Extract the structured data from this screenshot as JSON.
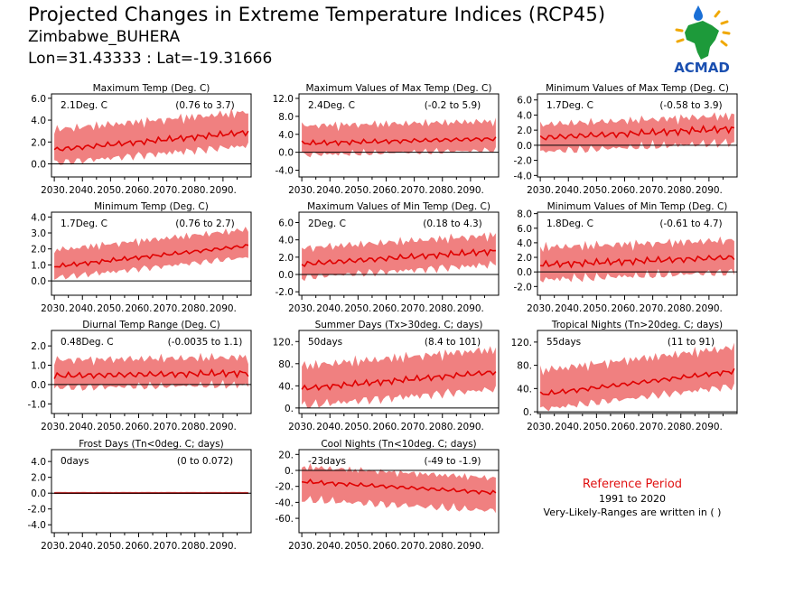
{
  "header": {
    "title": "Projected Changes in Extreme Temperature Indices (RCP45)",
    "region": "Zimbabwe_BUHERA",
    "coords": "Lon=31.43333 : Lat=-19.31666"
  },
  "logo": {
    "text": "ACMAD",
    "icon": "acmad-africa-logo"
  },
  "notes": {
    "title": "Reference Period",
    "period": "1991 to 2020",
    "ranges_note": "Very-Likely-Ranges are written in ( )"
  },
  "colors": {
    "band": "#f08080",
    "line": "#e00000",
    "zero_line": "#000000",
    "note_title": "#e01010"
  },
  "chart_data": [
    {
      "type": "area",
      "title": "Maximum Temp (Deg. C)",
      "value_label": "2.1Deg. C",
      "range_label": "(0.76 to 3.7)",
      "x_ticks": [
        "2030.",
        "2040.",
        "2050.",
        "2060.",
        "2070.",
        "2080.",
        "2090."
      ],
      "xlim": [
        2029,
        2100
      ],
      "ylim": [
        -1.2,
        6.4
      ],
      "y_ticks": [
        0,
        2,
        4,
        6
      ],
      "y_tick_labels": [
        "0.0",
        "2.0",
        "4.0",
        "6.0"
      ],
      "median_start": 1.3,
      "median_end": 2.9,
      "band_lower": 1.2,
      "band_upper": 1.8,
      "amp": 0.3
    },
    {
      "type": "area",
      "title": "Maximum Values of Max Temp (Deg. C)",
      "value_label": "2.4Deg. C",
      "range_label": "(-0.2 to 5.9)",
      "x_ticks": [
        "2030.",
        "2040.",
        "2050.",
        "2060.",
        "2070.",
        "2080.",
        "2090."
      ],
      "xlim": [
        2029,
        2100
      ],
      "ylim": [
        -5.5,
        13
      ],
      "y_ticks": [
        -4,
        0,
        4,
        8,
        12
      ],
      "y_tick_labels": [
        "-4.0",
        "0.0",
        "4.0",
        "8.0",
        "12.0"
      ],
      "median_start": 2.0,
      "median_end": 3.0,
      "band_lower": 2.5,
      "band_upper": 3.8,
      "amp": 0.6
    },
    {
      "type": "area",
      "title": "Minimum Values of Max Temp (Deg. C)",
      "value_label": "1.7Deg. C",
      "range_label": "(-0.58 to 3.9)",
      "x_ticks": [
        "2030.",
        "2040.",
        "2050.",
        "2060.",
        "2070.",
        "2080.",
        "2090."
      ],
      "xlim": [
        2029,
        2100
      ],
      "ylim": [
        -4.2,
        6.8
      ],
      "y_ticks": [
        -4,
        -2,
        0,
        2,
        4,
        6
      ],
      "y_tick_labels": [
        "-4.0",
        "-2.0",
        "0.0",
        "2.0",
        "4.0",
        "6.0"
      ],
      "median_start": 1.0,
      "median_end": 2.2,
      "band_lower": 1.8,
      "band_upper": 1.7,
      "amp": 0.5
    },
    {
      "type": "area",
      "title": "Minimum Temp (Deg. C)",
      "value_label": "1.7Deg. C",
      "range_label": "(0.76 to 2.7)",
      "x_ticks": [
        "2030.",
        "2040.",
        "2050.",
        "2060.",
        "2070.",
        "2080.",
        "2090."
      ],
      "xlim": [
        2029,
        2100
      ],
      "ylim": [
        -0.9,
        4.3
      ],
      "y_ticks": [
        0,
        1,
        2,
        3,
        4
      ],
      "y_tick_labels": [
        "0.0",
        "1.0",
        "2.0",
        "3.0",
        "4.0"
      ],
      "median_start": 0.9,
      "median_end": 2.2,
      "band_lower": 0.7,
      "band_upper": 1.0,
      "amp": 0.15
    },
    {
      "type": "area",
      "title": "Maximum Values of Min Temp (Deg. C)",
      "value_label": "2Deg. C",
      "range_label": "(0.18 to 4.3)",
      "x_ticks": [
        "2030.",
        "2040.",
        "2050.",
        "2060.",
        "2070.",
        "2080.",
        "2090."
      ],
      "xlim": [
        2029,
        2100
      ],
      "ylim": [
        -2.4,
        7.2
      ],
      "y_ticks": [
        -2,
        0,
        2,
        4,
        6
      ],
      "y_tick_labels": [
        "-2.0",
        "0.0",
        "2.0",
        "4.0",
        "6.0"
      ],
      "median_start": 1.2,
      "median_end": 2.7,
      "band_lower": 1.5,
      "band_upper": 1.8,
      "amp": 0.4
    },
    {
      "type": "area",
      "title": "Minimum Values of Min Temp (Deg. C)",
      "value_label": "1.8Deg. C",
      "range_label": "(-0.61 to 4.7)",
      "x_ticks": [
        "2030.",
        "2040.",
        "2050.",
        "2060.",
        "2070.",
        "2080.",
        "2090."
      ],
      "xlim": [
        2029,
        2100
      ],
      "ylim": [
        -3.2,
        8.2
      ],
      "y_ticks": [
        -2,
        0,
        2,
        4,
        6,
        8
      ],
      "y_tick_labels": [
        "-2.0",
        "0.0",
        "2.0",
        "4.0",
        "6.0",
        "8.0"
      ],
      "median_start": 1.0,
      "median_end": 2.0,
      "band_lower": 2.0,
      "band_upper": 2.3,
      "amp": 0.5
    },
    {
      "type": "area",
      "title": "Diurnal Temp Range (Deg. C)",
      "value_label": "0.48Deg. C",
      "range_label": "(-0.0035 to 1.1)",
      "x_ticks": [
        "2030.",
        "2040.",
        "2050.",
        "2060.",
        "2070.",
        "2080.",
        "2090."
      ],
      "xlim": [
        2029,
        2100
      ],
      "ylim": [
        -1.5,
        2.8
      ],
      "y_ticks": [
        -1,
        0,
        1,
        2
      ],
      "y_tick_labels": [
        "-1.0",
        "0.0",
        "1.0",
        "2.0"
      ],
      "median_start": 0.45,
      "median_end": 0.6,
      "band_lower": 0.6,
      "band_upper": 0.8,
      "amp": 0.2
    },
    {
      "type": "area",
      "title": "Summer Days (Tx>30deg. C; days)",
      "value_label": "50days",
      "range_label": "(8.4 to 101)",
      "x_ticks": [
        "2030.",
        "2040.",
        "2050.",
        "2060.",
        "2070.",
        "2080.",
        "2090."
      ],
      "xlim": [
        2029,
        2100
      ],
      "ylim": [
        -10,
        140
      ],
      "y_ticks": [
        0,
        40,
        80,
        120
      ],
      "y_tick_labels": [
        "0.",
        "40.",
        "80.",
        "120."
      ],
      "median_start": 35,
      "median_end": 65,
      "band_lower": 30,
      "band_upper": 40,
      "amp": 6
    },
    {
      "type": "area",
      "title": "Tropical Nights (Tn>20deg. C; days)",
      "value_label": "55days",
      "range_label": "(11 to 91)",
      "x_ticks": [
        "2030.",
        "2040.",
        "2050.",
        "2060.",
        "2070.",
        "2080.",
        "2090."
      ],
      "xlim": [
        2029,
        2100
      ],
      "ylim": [
        -3,
        140
      ],
      "y_ticks": [
        0,
        40,
        80,
        120
      ],
      "y_tick_labels": [
        "0.",
        "40.",
        "80.",
        "120."
      ],
      "median_start": 30,
      "median_end": 70,
      "band_lower": 25,
      "band_upper": 40,
      "amp": 5
    },
    {
      "type": "area",
      "title": "Frost Days (Tn<0deg. C; days)",
      "value_label": "0days",
      "range_label": "(0 to 0.072)",
      "x_ticks": [
        "2030.",
        "2040.",
        "2050.",
        "2060.",
        "2070.",
        "2080.",
        "2090."
      ],
      "xlim": [
        2029,
        2100
      ],
      "ylim": [
        -5,
        5.5
      ],
      "y_ticks": [
        -4,
        -2,
        0,
        2,
        4
      ],
      "y_tick_labels": [
        "-4.0",
        "-2.0",
        "0.0",
        "2.0",
        "4.0"
      ],
      "median_start": 0,
      "median_end": 0,
      "band_lower": 0,
      "band_upper": 0.15,
      "amp": 0
    },
    {
      "type": "area",
      "title": "Cool Nights (Tn<10deg. C; days)",
      "value_label": "-23days",
      "range_label": "(-49 to -1.9)",
      "x_ticks": [
        "2030.",
        "2040.",
        "2050.",
        "2060.",
        "2070.",
        "2080.",
        "2090."
      ],
      "xlim": [
        2029,
        2100
      ],
      "ylim": [
        -78,
        26
      ],
      "y_ticks": [
        -60,
        -40,
        -20,
        0,
        20
      ],
      "y_tick_labels": [
        "-60.",
        "-40.",
        "-20.",
        "0.",
        "20."
      ],
      "median_start": -14,
      "median_end": -28,
      "band_lower": 22,
      "band_upper": 18,
      "amp": 3
    }
  ]
}
